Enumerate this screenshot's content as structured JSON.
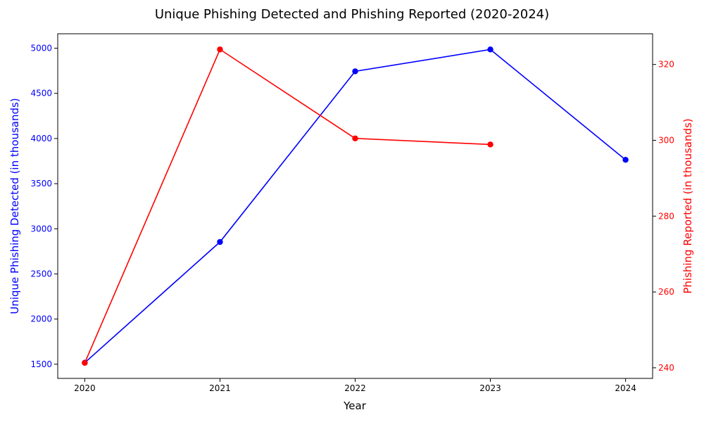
{
  "chart_data": {
    "type": "line",
    "title": "Unique Phishing Detected and Phishing Reported (2020-2024)",
    "xlabel": "Year",
    "x": [
      2020,
      2021,
      2022,
      2023,
      2024
    ],
    "xlim": [
      2019.8,
      2024.2
    ],
    "x_ticks": [
      "2020",
      "2021",
      "2022",
      "2023",
      "2024"
    ],
    "grid": false,
    "series": [
      {
        "name": "Unique Phishing Detected (in thousands)",
        "axis": "left",
        "color": "#0000ff",
        "values": [
          1517,
          2854,
          4744,
          4986,
          3764
        ]
      },
      {
        "name": "Phishing Reported (in thousands)",
        "axis": "right",
        "color": "#ff0000",
        "values": [
          241.3,
          323.97,
          300.5,
          298.9,
          null
        ]
      }
    ],
    "y_left": {
      "label": "Unique Phishing Detected (in thousands)",
      "color": "#0000ff",
      "ylim": [
        1343,
        5160
      ],
      "ticks": [
        "1500",
        "2000",
        "2500",
        "3000",
        "3500",
        "4000",
        "4500",
        "5000"
      ]
    },
    "y_right": {
      "label": "Phishing Reported (in thousands)",
      "color": "#ff0000",
      "ylim": [
        237.2,
        328.1
      ],
      "ticks": [
        "240",
        "260",
        "280",
        "300",
        "320"
      ]
    }
  }
}
